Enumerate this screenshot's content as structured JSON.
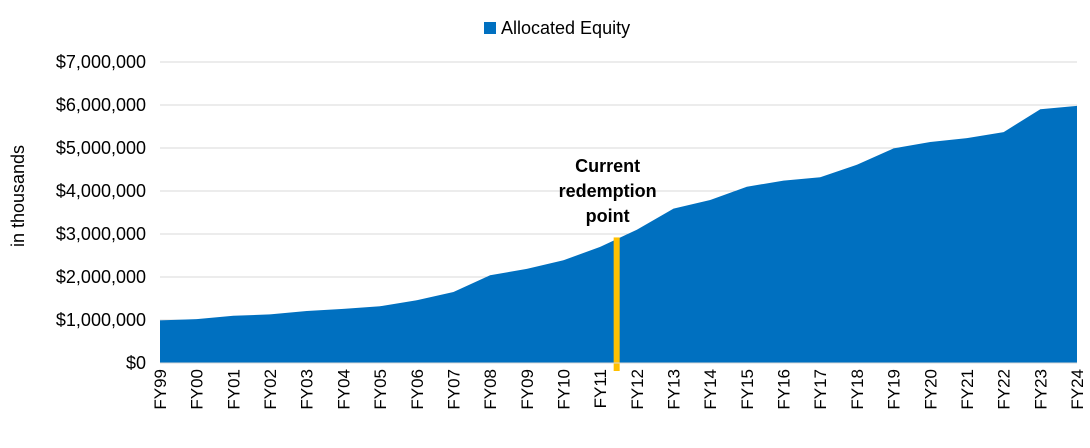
{
  "chart_data": {
    "type": "area",
    "title": "",
    "xlabel": "",
    "ylabel": "in thousands",
    "ylim": [
      0,
      7000000
    ],
    "yticks": [
      {
        "value": 0,
        "label": "$0"
      },
      {
        "value": 1000000,
        "label": "$1,000,000"
      },
      {
        "value": 2000000,
        "label": "$2,000,000"
      },
      {
        "value": 3000000,
        "label": "$3,000,000"
      },
      {
        "value": 4000000,
        "label": "$4,000,000"
      },
      {
        "value": 5000000,
        "label": "$5,000,000"
      },
      {
        "value": 6000000,
        "label": "$6,000,000"
      },
      {
        "value": 7000000,
        "label": "$7,000,000"
      }
    ],
    "grid": true,
    "legend_position": "top-center",
    "categories": [
      "FY99",
      "FY00",
      "FY01",
      "FY02",
      "FY03",
      "FY04",
      "FY05",
      "FY06",
      "FY07",
      "FY08",
      "FY09",
      "FY10",
      "FY11",
      "FY12",
      "FY13",
      "FY14",
      "FY15",
      "FY16",
      "FY17",
      "FY18",
      "FY19",
      "FY20",
      "FY21",
      "FY22",
      "FY23",
      "FY24"
    ],
    "series": [
      {
        "name": "Allocated Equity",
        "color": "#0070c0",
        "values": [
          990000,
          1020000,
          1100000,
          1130000,
          1210000,
          1260000,
          1320000,
          1460000,
          1650000,
          2040000,
          2190000,
          2390000,
          2700000,
          3100000,
          3590000,
          3790000,
          4100000,
          4240000,
          4320000,
          4610000,
          4990000,
          5140000,
          5230000,
          5370000,
          5900000,
          5980000
        ]
      }
    ],
    "annotations": [
      {
        "type": "vertical-marker",
        "x_position": 12.45,
        "y_value": 2920000,
        "color": "#ffc000",
        "text_lines": [
          "Current",
          "redemption",
          "point"
        ]
      }
    ]
  }
}
